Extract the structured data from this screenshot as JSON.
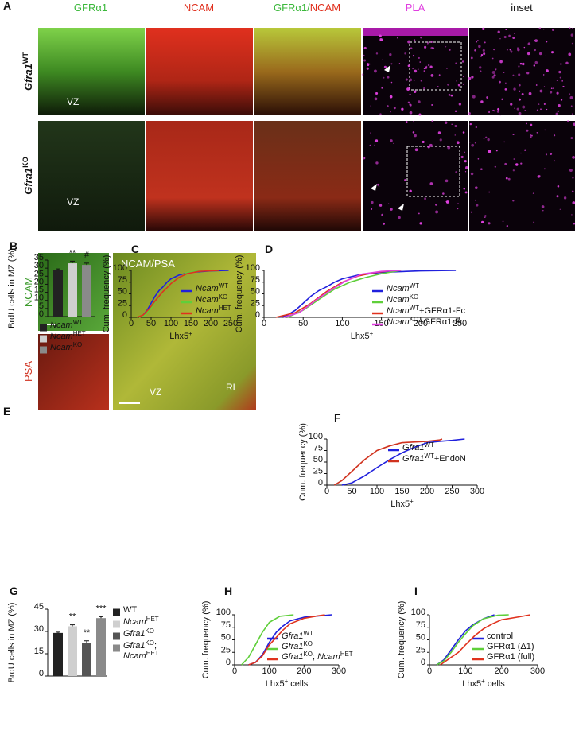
{
  "panel_a": {
    "label": "A",
    "columns": [
      [
        "GFRα1"
      ],
      [
        "NCAM"
      ],
      [
        "GFRα1/",
        "NCAM"
      ],
      [
        "PLA"
      ],
      [
        "inset"
      ]
    ],
    "rows": [
      {
        "name": [
          "Gfra1",
          "WT"
        ],
        "region": "VZ"
      },
      {
        "name": [
          "Gfra1",
          "KO"
        ],
        "region": "VZ"
      }
    ]
  },
  "panel_e": {
    "label": "E",
    "left_top": "NCAM",
    "left_bottom": "PSA",
    "merge": "NCAM/PSA",
    "regions": [
      "VZ",
      "RL"
    ]
  },
  "chart_data": [
    {
      "type": "bar",
      "panel_label": "B",
      "ylabel": "BrdU cells in MZ (%)",
      "ylim": [
        0,
        35
      ],
      "yticks": [
        0,
        5,
        10,
        15,
        20,
        25,
        30,
        35
      ],
      "series": [
        {
          "name": [
            {
              "text": "Ncam",
              "style": "italic"
            },
            {
              "text": "WT",
              "style": "sup"
            }
          ],
          "color": "#222222",
          "values": [
            29
          ],
          "errors": [
            0.5
          ]
        },
        {
          "name": [
            {
              "text": "Ncam",
              "style": "italic"
            },
            {
              "text": "HET",
              "style": "sup"
            }
          ],
          "color": "#cfcfcf",
          "values": [
            33
          ],
          "errors": [
            1.3
          ],
          "annotation": "**"
        },
        {
          "name": [
            {
              "text": "Ncam",
              "style": "italic"
            },
            {
              "text": "KO",
              "style": "sup"
            }
          ],
          "color": "#8a8a8a",
          "values": [
            32
          ],
          "errors": [
            1.1
          ],
          "annotation": "#"
        }
      ]
    },
    {
      "type": "line",
      "panel_label": "C",
      "ylabel": "Cum. frequency (%)",
      "xlabel": [
        {
          "text": "Lhx5",
          "style": "plain"
        },
        {
          "text": "+",
          "style": "sup"
        }
      ],
      "xlim": [
        0,
        250
      ],
      "xticks": [
        0,
        50,
        100,
        150,
        200,
        250
      ],
      "ylim": [
        0,
        100
      ],
      "yticks": [
        0,
        25,
        50,
        75,
        100
      ],
      "series": [
        {
          "name": [
            {
              "text": "Ncam",
              "style": "italic"
            },
            {
              "text": "WT",
              "style": "sup"
            }
          ],
          "color": "#2020dd",
          "x": [
            20,
            30,
            40,
            50,
            60,
            70,
            80,
            90,
            100,
            120,
            150,
            200,
            245
          ],
          "values": [
            0,
            5,
            15,
            30,
            45,
            57,
            65,
            75,
            82,
            90,
            96,
            99,
            100
          ]
        },
        {
          "name": [
            {
              "text": "Ncam",
              "style": "italic"
            },
            {
              "text": "KO",
              "style": "sup"
            }
          ],
          "color": "#5fcf3a",
          "x": [
            20,
            35,
            50,
            60,
            70,
            80,
            90,
            100,
            120,
            140,
            165,
            200
          ],
          "values": [
            0,
            5,
            20,
            33,
            45,
            55,
            65,
            75,
            85,
            95,
            99,
            100
          ]
        },
        {
          "name": [
            {
              "text": "Ncam",
              "style": "italic"
            },
            {
              "text": "HET",
              "style": "sup"
            }
          ],
          "color": "#e0321e",
          "x": [
            15,
            30,
            45,
            60,
            70,
            80,
            90,
            100,
            120,
            140,
            170,
            220
          ],
          "values": [
            0,
            5,
            18,
            35,
            45,
            55,
            63,
            72,
            85,
            93,
            98,
            100
          ]
        }
      ]
    },
    {
      "type": "line",
      "panel_label": "D",
      "ylabel": "Cum. frequency (%)",
      "xlabel": [
        {
          "text": "Lhx5",
          "style": "plain"
        },
        {
          "text": "+",
          "style": "sup"
        }
      ],
      "xlim": [
        0,
        250
      ],
      "xticks": [
        0,
        50,
        100,
        150,
        200,
        250
      ],
      "ylim": [
        0,
        100
      ],
      "yticks": [
        0,
        25,
        50,
        75,
        100
      ],
      "series": [
        {
          "name": [
            {
              "text": "Ncam",
              "style": "italic"
            },
            {
              "text": "WT",
              "style": "sup"
            }
          ],
          "color": "#2020dd",
          "x": [
            20,
            30,
            40,
            50,
            60,
            70,
            80,
            90,
            100,
            120,
            150,
            200,
            245
          ],
          "values": [
            0,
            5,
            15,
            30,
            45,
            57,
            65,
            75,
            82,
            90,
            96,
            99,
            100
          ]
        },
        {
          "name": [
            {
              "text": "Ncam",
              "style": "italic"
            },
            {
              "text": "KO",
              "style": "sup"
            }
          ],
          "color": "#5fcf3a",
          "x": [
            30,
            50,
            70,
            90,
            110,
            130,
            150,
            175
          ],
          "values": [
            0,
            15,
            38,
            60,
            75,
            85,
            93,
            100
          ]
        },
        {
          "name": [
            {
              "text": "Ncam",
              "style": "italic"
            },
            {
              "text": "WT",
              "style": "sup"
            },
            {
              "text": "+GFRα1-Fc",
              "style": "plain"
            }
          ],
          "color": "#e0321e",
          "x": [
            15,
            40,
            60,
            80,
            100,
            120,
            140,
            165
          ],
          "values": [
            0,
            10,
            30,
            55,
            75,
            88,
            95,
            100
          ]
        },
        {
          "name": [
            {
              "text": "Ncam",
              "style": "italic"
            },
            {
              "text": "KO",
              "style": "sup"
            },
            {
              "text": "+GFRα1-Fc",
              "style": "plain"
            }
          ],
          "color": "#e040e0",
          "x": [
            25,
            45,
            65,
            85,
            105,
            125,
            150,
            175
          ],
          "values": [
            0,
            10,
            35,
            58,
            78,
            92,
            98,
            100
          ]
        }
      ]
    },
    {
      "type": "line",
      "panel_label": "F",
      "ylabel": "Cum. frequency (%)",
      "xlabel": [
        {
          "text": "Lhx5",
          "style": "plain"
        },
        {
          "text": "+",
          "style": "sup"
        }
      ],
      "xlim": [
        0,
        300
      ],
      "xticks": [
        0,
        50,
        100,
        150,
        200,
        250,
        300
      ],
      "ylim": [
        0,
        100
      ],
      "yticks": [
        0,
        25,
        50,
        75,
        100
      ],
      "series": [
        {
          "name": [
            {
              "text": "Gfra1",
              "style": "italic"
            },
            {
              "text": "WT",
              "style": "sup"
            }
          ],
          "color": "#2020dd",
          "x": [
            30,
            50,
            75,
            100,
            125,
            150,
            175,
            200,
            225,
            250,
            275
          ],
          "values": [
            0,
            5,
            20,
            38,
            55,
            70,
            82,
            92,
            95,
            97,
            100
          ]
        },
        {
          "name": [
            {
              "text": "Gfra1",
              "style": "italic"
            },
            {
              "text": "WT",
              "style": "sup"
            },
            {
              "text": "+EndoN",
              "style": "plain"
            }
          ],
          "color": "#d0321e",
          "x": [
            15,
            30,
            50,
            75,
            100,
            125,
            150,
            200,
            225,
            230
          ],
          "values": [
            0,
            10,
            30,
            55,
            75,
            85,
            92,
            95,
            98,
            100
          ]
        }
      ]
    },
    {
      "type": "bar",
      "panel_label": "G",
      "ylabel": "BrdU cells in MZ (%)",
      "ylim": [
        0,
        45
      ],
      "yticks": [
        0,
        15,
        30,
        45
      ],
      "series": [
        {
          "name": [
            {
              "text": "WT",
              "style": "plain"
            }
          ],
          "color": "#222222",
          "values": [
            29
          ],
          "errors": [
            0.5
          ]
        },
        {
          "name": [
            {
              "text": "Ncam",
              "style": "italic"
            },
            {
              "text": "HET",
              "style": "sup"
            }
          ],
          "color": "#cfcfcf",
          "values": [
            33.5
          ],
          "errors": [
            1
          ],
          "annotation": "**"
        },
        {
          "name": [
            {
              "text": "Gfra1",
              "style": "italic"
            },
            {
              "text": "KO",
              "style": "sup"
            }
          ],
          "color": "#555555",
          "values": [
            22.5
          ],
          "errors": [
            1.2
          ],
          "annotation": "**"
        },
        {
          "name": [
            {
              "text": "Gfra1",
              "style": "italic"
            },
            {
              "text": "KO",
              "style": "sup"
            },
            {
              "text": ";",
              "style": "plain"
            },
            {
              "text": "Ncam",
              "style": "italic",
              "newline": true
            },
            {
              "text": "HET",
              "style": "sup"
            }
          ],
          "color": "#8a8a8a",
          "values": [
            39
          ],
          "errors": [
            1
          ],
          "annotation": "***"
        }
      ]
    },
    {
      "type": "line",
      "panel_label": "H",
      "ylabel": "Cum. frequency (%)",
      "xlabel": [
        {
          "text": "Lhx5",
          "style": "plain"
        },
        {
          "text": "+",
          "style": "sup"
        },
        {
          "text": " cells",
          "style": "plain"
        }
      ],
      "xlim": [
        0,
        300
      ],
      "xticks": [
        0,
        100,
        200,
        300
      ],
      "ylim": [
        0,
        100
      ],
      "yticks": [
        0,
        25,
        50,
        75,
        100
      ],
      "series": [
        {
          "name": [
            {
              "text": "Gfra1",
              "style": "italic"
            },
            {
              "text": "WT",
              "style": "sup"
            }
          ],
          "color": "#2020dd",
          "x": [
            40,
            60,
            80,
            100,
            120,
            140,
            160,
            200,
            280
          ],
          "values": [
            0,
            5,
            20,
            45,
            65,
            78,
            88,
            95,
            100
          ]
        },
        {
          "name": [
            {
              "text": "Gfra1",
              "style": "italic"
            },
            {
              "text": "KO",
              "style": "sup"
            }
          ],
          "color": "#5fcf3a",
          "x": [
            20,
            40,
            60,
            80,
            100,
            130,
            170
          ],
          "values": [
            0,
            15,
            40,
            65,
            85,
            97,
            100
          ]
        },
        {
          "name": [
            {
              "text": "Gfra1",
              "style": "italic"
            },
            {
              "text": "KO",
              "style": "sup"
            },
            {
              "text": "; ",
              "style": "plain"
            },
            {
              "text": "Ncam",
              "style": "italic"
            },
            {
              "text": "HET",
              "style": "sup"
            }
          ],
          "color": "#e0321e",
          "x": [
            40,
            60,
            80,
            100,
            120,
            140,
            160,
            200,
            240,
            260
          ],
          "values": [
            0,
            5,
            18,
            40,
            55,
            70,
            82,
            93,
            98,
            100
          ]
        }
      ]
    },
    {
      "type": "line",
      "panel_label": "I",
      "ylabel": "Cum. frequency (%)",
      "xlabel": [
        {
          "text": "Lhx5",
          "style": "plain"
        },
        {
          "text": "+",
          "style": "sup"
        },
        {
          "text": " cells",
          "style": "plain"
        }
      ],
      "xlim": [
        0,
        300
      ],
      "xticks": [
        0,
        100,
        200,
        300
      ],
      "ylim": [
        0,
        100
      ],
      "yticks": [
        0,
        25,
        50,
        75,
        100
      ],
      "series": [
        {
          "name": [
            {
              "text": "control",
              "style": "plain"
            }
          ],
          "color": "#2020dd",
          "x": [
            20,
            40,
            60,
            80,
            100,
            120,
            150,
            180
          ],
          "values": [
            0,
            10,
            30,
            50,
            68,
            80,
            92,
            100
          ]
        },
        {
          "name": [
            {
              "text": "GFRα1 (Δ1)",
              "style": "plain"
            }
          ],
          "color": "#5fcf3a",
          "x": [
            20,
            40,
            60,
            80,
            100,
            120,
            150,
            190,
            220
          ],
          "values": [
            0,
            8,
            25,
            45,
            62,
            78,
            92,
            99,
            100
          ]
        },
        {
          "name": [
            {
              "text": "GFRα1 (full)",
              "style": "plain"
            }
          ],
          "color": "#e0321e",
          "x": [
            30,
            50,
            80,
            100,
            125,
            150,
            175,
            200,
            250,
            280
          ],
          "values": [
            0,
            10,
            25,
            40,
            58,
            72,
            82,
            90,
            96,
            100
          ]
        }
      ]
    }
  ]
}
